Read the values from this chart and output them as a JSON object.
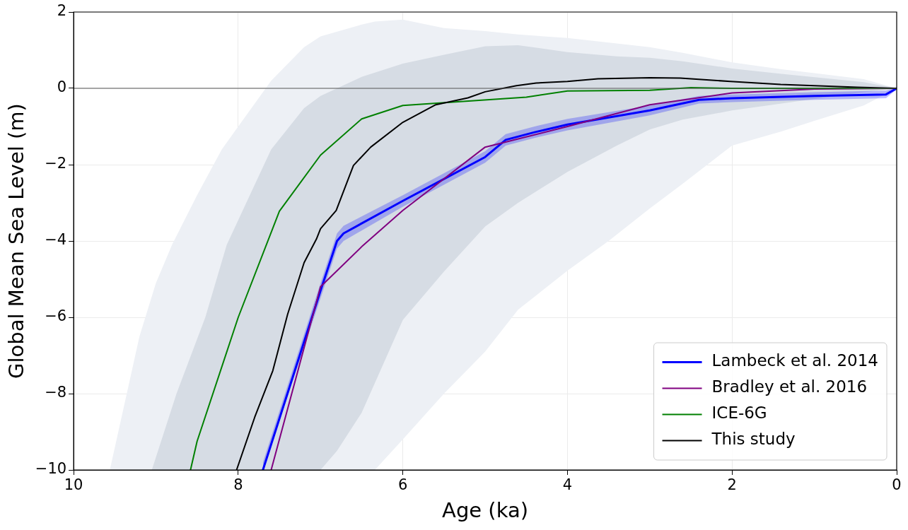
{
  "chart_data": {
    "type": "line",
    "xlabel": "Age (ka)",
    "ylabel": "Global Mean Sea Level (m)",
    "xlim": [
      10,
      0
    ],
    "xticks": [
      10,
      8,
      6,
      4,
      2,
      0
    ],
    "ylim": [
      -10,
      2
    ],
    "yticks": [
      -10,
      -8,
      -6,
      -4,
      -2,
      0,
      2
    ],
    "grid": true,
    "legend": "bottom right",
    "line_style": "solid",
    "marker": "none",
    "ref_lines": [
      {
        "axis": "y",
        "value": 0,
        "color": "#555555"
      }
    ],
    "series": [
      {
        "color": "#edf0f5",
        "x": [
          9.56,
          9.2,
          9.0,
          8.8,
          8.5,
          8.2,
          8.0,
          7.6,
          7.2,
          7.0,
          6.5,
          6.34,
          6.0,
          5.5,
          5.0,
          4.6,
          4.0,
          3.5,
          3.0,
          2.6,
          2.0,
          1.4,
          1.0,
          0.4,
          0
        ],
        "values": [
          null,
          null,
          null,
          null,
          null,
          null,
          null,
          null,
          null,
          null,
          null,
          null,
          null,
          null,
          null,
          null,
          null,
          null,
          null,
          null,
          null,
          null,
          null,
          null,
          null
        ],
        "upper": [
          -10,
          -6.5,
          -5.1,
          -4.08,
          -2.8,
          -1.6,
          -1.0,
          0.2,
          1.08,
          1.36,
          1.67,
          1.75,
          1.8,
          1.58,
          1.5,
          1.41,
          1.32,
          1.2,
          1.08,
          0.93,
          0.68,
          0.5,
          0.4,
          0.24,
          0
        ],
        "lower": [
          -10,
          -10,
          -10,
          -10,
          -10,
          -10,
          -10,
          -10,
          -10,
          -10,
          -10,
          -10,
          -9.2,
          -8.0,
          -6.9,
          -5.8,
          -4.78,
          -4.0,
          -3.15,
          -2.5,
          -1.5,
          -1.13,
          -0.85,
          -0.45,
          0
        ]
      },
      {
        "color": "#d6dce4",
        "x": [
          9.05,
          8.75,
          8.4,
          8.14,
          7.6,
          7.2,
          7.0,
          6.8,
          6.5,
          6.0,
          5.5,
          5.0,
          4.6,
          4.0,
          3.4,
          3.0,
          2.6,
          2.0,
          1.4,
          0.4,
          0
        ],
        "values": [
          null,
          null,
          null,
          null,
          null,
          null,
          null,
          null,
          null,
          null,
          null,
          null,
          null,
          null,
          null,
          null,
          null,
          null,
          null,
          null,
          null
        ],
        "upper": [
          -10,
          -8.0,
          -6.0,
          -4.1,
          -1.6,
          -0.52,
          -0.2,
          0.0,
          0.3,
          0.65,
          0.88,
          1.1,
          1.13,
          0.95,
          0.84,
          0.8,
          0.71,
          0.52,
          0.38,
          0.16,
          0
        ],
        "lower": [
          -10,
          -10,
          -10,
          -10,
          -10,
          -10,
          -10,
          -9.5,
          -8.5,
          -6.07,
          -4.8,
          -3.62,
          -3.0,
          -2.19,
          -1.5,
          -1.08,
          -0.82,
          -0.58,
          -0.4,
          -0.1,
          0
        ]
      },
      {
        "name": "Lambeck et al. 2014",
        "color": "#0000ff",
        "x": [
          7.7,
          7.0,
          6.8,
          6.72,
          6.0,
          5.0,
          4.75,
          4.4,
          4.0,
          3.0,
          2.4,
          2.0,
          1.0,
          0.13,
          0
        ],
        "values": [
          -10,
          -5.3,
          -4.0,
          -3.8,
          -2.95,
          -1.8,
          -1.35,
          -1.15,
          -0.95,
          -0.58,
          -0.3,
          -0.26,
          -0.2,
          -0.16,
          0
        ],
        "upper": [
          -9.8,
          -5.1,
          -3.8,
          -3.6,
          -2.8,
          -1.65,
          -1.2,
          -1.0,
          -0.8,
          -0.45,
          -0.2,
          -0.16,
          -0.1,
          -0.06,
          0.03
        ],
        "lower": [
          -10,
          -5.5,
          -4.2,
          -4.0,
          -3.1,
          -1.95,
          -1.5,
          -1.3,
          -1.1,
          -0.71,
          -0.4,
          -0.36,
          -0.3,
          -0.26,
          -0.03
        ]
      },
      {
        "name": "Bradley et al. 2016",
        "color": "#800080",
        "x": [
          7.6,
          7.0,
          6.5,
          6.0,
          5.0,
          4.7,
          4.0,
          3.0,
          2.0,
          1.0,
          0
        ],
        "values": [
          -10,
          -5.2,
          -4.15,
          -3.2,
          -1.54,
          -1.38,
          -1.0,
          -0.43,
          -0.12,
          -0.02,
          0
        ]
      },
      {
        "name": "ICE-6G",
        "color": "#008000",
        "x": [
          8.58,
          8.5,
          8.0,
          7.5,
          7.0,
          6.5,
          6.0,
          4.5,
          4.0,
          3.0,
          2.5,
          2.0,
          0
        ],
        "values": [
          -10,
          -9.25,
          -6.0,
          -3.22,
          -1.75,
          -0.8,
          -0.45,
          -0.23,
          -0.07,
          -0.05,
          0.02,
          0.0,
          0
        ]
      },
      {
        "name": "This study",
        "color": "#000000",
        "x": [
          8.02,
          7.8,
          7.58,
          7.4,
          7.2,
          7.05,
          7.0,
          6.81,
          6.6,
          6.39,
          6.0,
          5.6,
          5.21,
          5.0,
          4.62,
          4.38,
          4.0,
          3.63,
          3.0,
          2.63,
          2.02,
          1.41,
          0.48,
          0
        ],
        "values": [
          -10,
          -8.62,
          -7.4,
          -5.92,
          -4.57,
          -3.95,
          -3.68,
          -3.2,
          -2.02,
          -1.54,
          -0.89,
          -0.43,
          -0.25,
          -0.09,
          0.07,
          0.14,
          0.18,
          0.25,
          0.28,
          0.27,
          0.18,
          0.1,
          0.03,
          0
        ]
      }
    ]
  }
}
